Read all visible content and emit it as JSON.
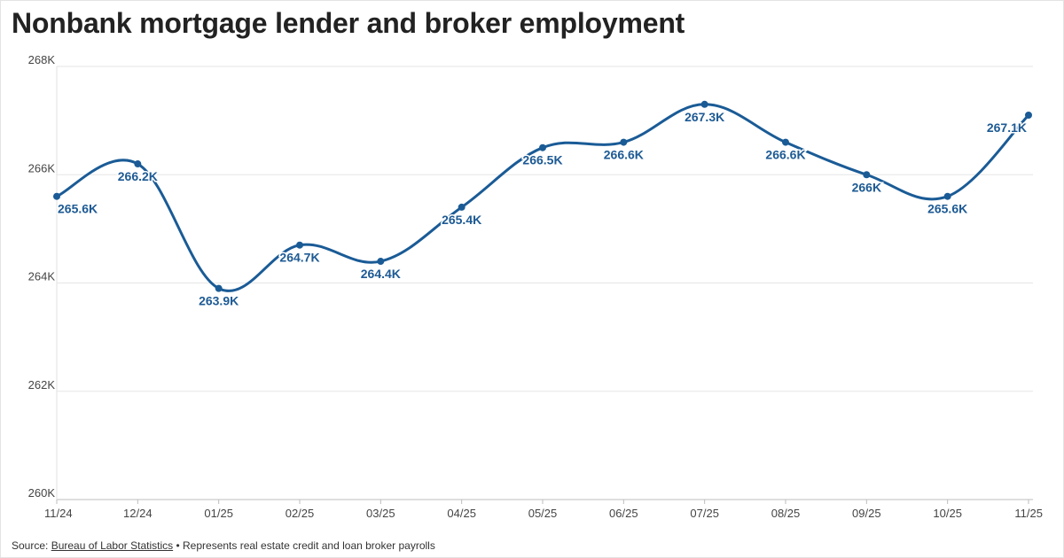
{
  "title": "Nonbank mortgage lender and broker employment",
  "footer": {
    "source_prefix": "Source:",
    "source_link": "Bureau of Labor Statistics",
    "bullet": "•",
    "note": "Represents real estate credit and loan broker payrolls"
  },
  "colors": {
    "line": "#1a5b96",
    "label": "#1d5a94",
    "grid": "#e6e6e6",
    "axis": "#444444"
  },
  "chart_data": {
    "type": "line",
    "title": "Nonbank mortgage lender and broker employment",
    "xlabel": "",
    "ylabel": "",
    "categories": [
      "11/24",
      "12/24",
      "01/25",
      "02/25",
      "03/25",
      "04/25",
      "05/25",
      "06/25",
      "07/25",
      "08/25",
      "09/25",
      "10/25",
      "11/25"
    ],
    "series": [
      {
        "name": "",
        "values": [
          265.6,
          266.2,
          263.9,
          264.7,
          264.4,
          265.4,
          266.5,
          266.6,
          267.3,
          266.6,
          266.0,
          265.6,
          267.1
        ],
        "labels": [
          "265.6K",
          "266.2K",
          "263.9K",
          "264.7K",
          "264.4K",
          "265.4K",
          "266.5K",
          "266.6K",
          "267.3K",
          "266.6K",
          "266K",
          "265.6K",
          "267.1K"
        ]
      }
    ],
    "yticks": [
      260,
      262,
      264,
      266,
      268
    ],
    "ytick_labels": [
      "260K",
      "262K",
      "264K",
      "266K",
      "268K"
    ],
    "ylim": [
      260,
      268
    ],
    "grid": true,
    "curve": "smooth",
    "markers": true
  }
}
